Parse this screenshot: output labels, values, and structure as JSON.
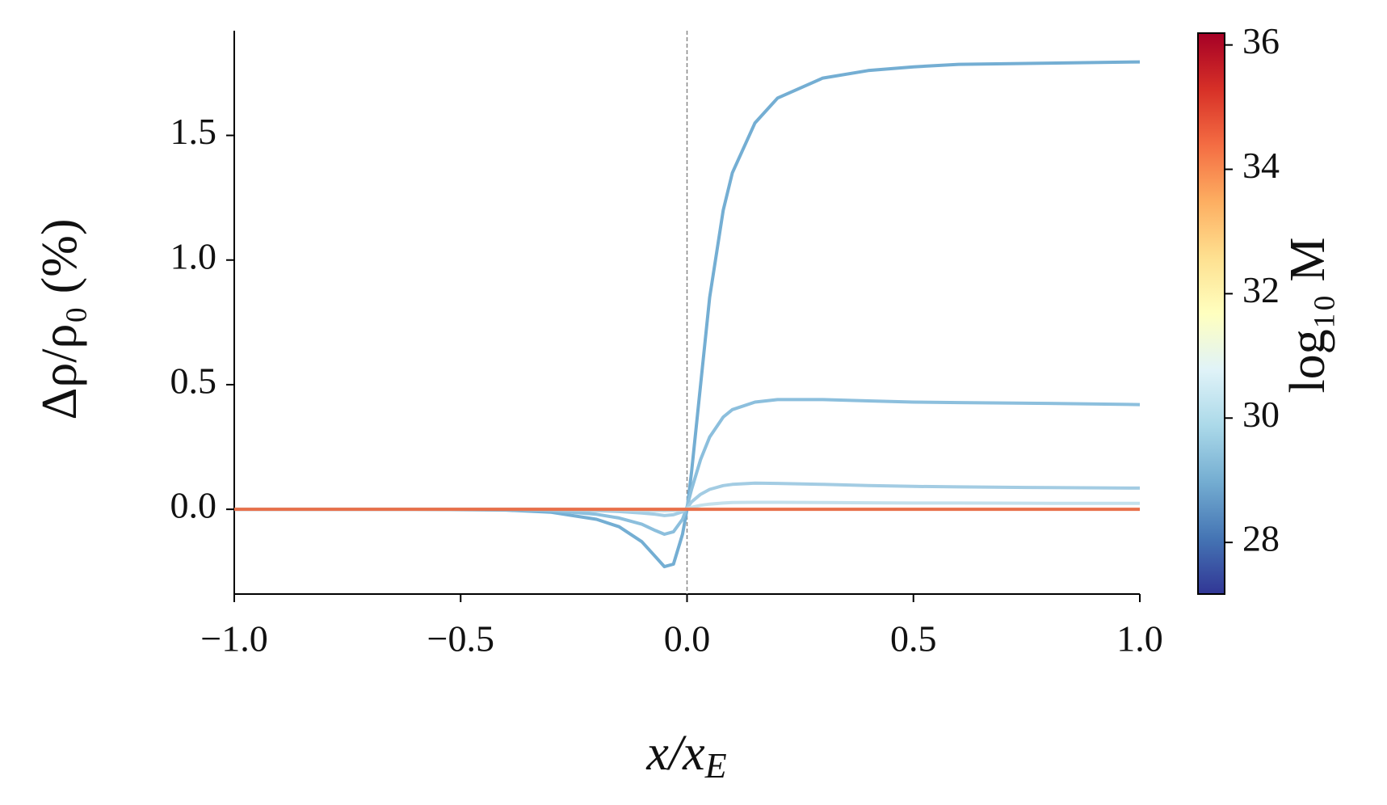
{
  "chart_data": {
    "type": "line",
    "xlabel": [
      "x/x",
      "E"
    ],
    "ylabel": "Δρ/ρ₀ (%)",
    "x": [
      -1.0,
      -0.8,
      -0.6,
      -0.4,
      -0.3,
      -0.2,
      -0.15,
      -0.1,
      -0.07,
      -0.05,
      -0.03,
      -0.01,
      0.0,
      0.01,
      0.03,
      0.05,
      0.08,
      0.1,
      0.15,
      0.2,
      0.3,
      0.4,
      0.5,
      0.6,
      0.8,
      1.0
    ],
    "series": [
      {
        "color": "#74aed3",
        "values": [
          0,
          0,
          0,
          -0.003,
          -0.012,
          -0.04,
          -0.07,
          -0.13,
          -0.19,
          -0.23,
          -0.22,
          -0.1,
          0.0,
          0.15,
          0.5,
          0.85,
          1.2,
          1.35,
          1.55,
          1.65,
          1.73,
          1.76,
          1.775,
          1.785,
          1.79,
          1.795
        ]
      },
      {
        "color": "#8cbfdd",
        "values": [
          0,
          0,
          0,
          -0.001,
          -0.005,
          -0.02,
          -0.035,
          -0.06,
          -0.085,
          -0.1,
          -0.09,
          -0.04,
          0.01,
          0.08,
          0.2,
          0.29,
          0.37,
          0.4,
          0.43,
          0.44,
          0.44,
          0.435,
          0.43,
          0.428,
          0.425,
          0.42
        ]
      },
      {
        "color": "#a3cce3",
        "values": [
          0,
          0,
          0,
          0,
          -0.001,
          -0.005,
          -0.009,
          -0.015,
          -0.02,
          -0.025,
          -0.022,
          -0.01,
          0.005,
          0.03,
          0.06,
          0.08,
          0.095,
          0.1,
          0.105,
          0.104,
          0.1,
          0.095,
          0.092,
          0.09,
          0.087,
          0.085
        ]
      },
      {
        "color": "#c4e1ec",
        "values": [
          0,
          0,
          0,
          0,
          0,
          -0.001,
          -0.002,
          -0.004,
          -0.005,
          -0.006,
          -0.005,
          -0.002,
          0.002,
          0.008,
          0.016,
          0.021,
          0.025,
          0.027,
          0.028,
          0.028,
          0.027,
          0.026,
          0.025,
          0.025,
          0.024,
          0.024
        ]
      },
      {
        "color": "#e8704a",
        "values": [
          0,
          0,
          0,
          0,
          0,
          0,
          0,
          0,
          0,
          0,
          0,
          0,
          0,
          0,
          0,
          0,
          0,
          0,
          0,
          0,
          0,
          0,
          0,
          0,
          0,
          0
        ]
      }
    ],
    "xlim": [
      -1.0,
      1.0
    ],
    "xticks": [
      {
        "value": -1.0,
        "label": "−1.0"
      },
      {
        "value": -0.5,
        "label": "−0.5"
      },
      {
        "value": 0.0,
        "label": "0.0"
      },
      0.5,
      {
        "value": 1.0,
        "label": "1.0"
      }
    ],
    "ylim": [
      -0.34,
      1.92
    ],
    "yticks": [
      {
        "value": 0.0,
        "label": "0.0"
      },
      0.5,
      {
        "value": 1.0,
        "label": "1.0"
      },
      1.5
    ],
    "vline": 0.0,
    "colorbar": {
      "label": "log₁₀ M",
      "lim": [
        27.17,
        36.19
      ],
      "ticks": [
        28,
        30,
        32,
        34,
        36
      ],
      "colormap": [
        "#313695",
        "#4575b4",
        "#74add1",
        "#abd9e9",
        "#e0f3f8",
        "#ffffbf",
        "#fee090",
        "#fdae61",
        "#f46d43",
        "#d73027",
        "#a50026"
      ]
    }
  }
}
